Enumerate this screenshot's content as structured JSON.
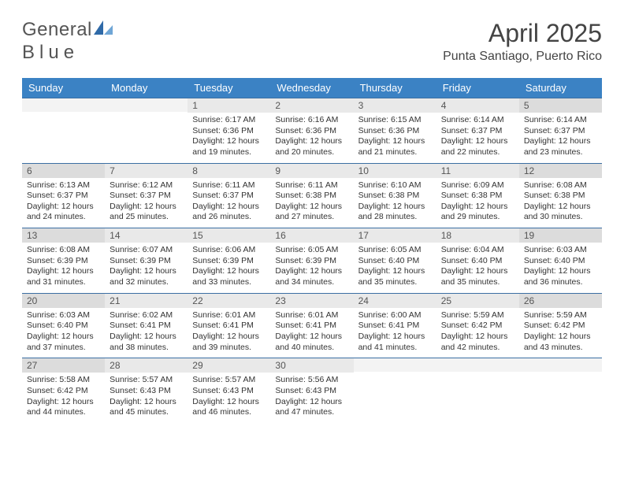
{
  "brand": {
    "name_a": "General",
    "name_b": "Blue"
  },
  "title": "April 2025",
  "location": "Punta Santiago, Puerto Rico",
  "header_row_bg": "#3b82c4",
  "header_row_fg": "#ffffff",
  "rule_color": "#3b6fa3",
  "daynum_bg": "#e9e9e9",
  "daynum_weekend_bg": "#dcdcdc",
  "logo_primary": "#2f6aa8",
  "logo_secondary": "#6fa6d6",
  "day_names": [
    "Sunday",
    "Monday",
    "Tuesday",
    "Wednesday",
    "Thursday",
    "Friday",
    "Saturday"
  ],
  "weeks": [
    [
      {
        "n": "",
        "sr": "",
        "ss": "",
        "dl": ""
      },
      {
        "n": "",
        "sr": "",
        "ss": "",
        "dl": ""
      },
      {
        "n": "1",
        "sr": "Sunrise: 6:17 AM",
        "ss": "Sunset: 6:36 PM",
        "dl": "Daylight: 12 hours and 19 minutes."
      },
      {
        "n": "2",
        "sr": "Sunrise: 6:16 AM",
        "ss": "Sunset: 6:36 PM",
        "dl": "Daylight: 12 hours and 20 minutes."
      },
      {
        "n": "3",
        "sr": "Sunrise: 6:15 AM",
        "ss": "Sunset: 6:36 PM",
        "dl": "Daylight: 12 hours and 21 minutes."
      },
      {
        "n": "4",
        "sr": "Sunrise: 6:14 AM",
        "ss": "Sunset: 6:37 PM",
        "dl": "Daylight: 12 hours and 22 minutes."
      },
      {
        "n": "5",
        "sr": "Sunrise: 6:14 AM",
        "ss": "Sunset: 6:37 PM",
        "dl": "Daylight: 12 hours and 23 minutes."
      }
    ],
    [
      {
        "n": "6",
        "sr": "Sunrise: 6:13 AM",
        "ss": "Sunset: 6:37 PM",
        "dl": "Daylight: 12 hours and 24 minutes."
      },
      {
        "n": "7",
        "sr": "Sunrise: 6:12 AM",
        "ss": "Sunset: 6:37 PM",
        "dl": "Daylight: 12 hours and 25 minutes."
      },
      {
        "n": "8",
        "sr": "Sunrise: 6:11 AM",
        "ss": "Sunset: 6:37 PM",
        "dl": "Daylight: 12 hours and 26 minutes."
      },
      {
        "n": "9",
        "sr": "Sunrise: 6:11 AM",
        "ss": "Sunset: 6:38 PM",
        "dl": "Daylight: 12 hours and 27 minutes."
      },
      {
        "n": "10",
        "sr": "Sunrise: 6:10 AM",
        "ss": "Sunset: 6:38 PM",
        "dl": "Daylight: 12 hours and 28 minutes."
      },
      {
        "n": "11",
        "sr": "Sunrise: 6:09 AM",
        "ss": "Sunset: 6:38 PM",
        "dl": "Daylight: 12 hours and 29 minutes."
      },
      {
        "n": "12",
        "sr": "Sunrise: 6:08 AM",
        "ss": "Sunset: 6:38 PM",
        "dl": "Daylight: 12 hours and 30 minutes."
      }
    ],
    [
      {
        "n": "13",
        "sr": "Sunrise: 6:08 AM",
        "ss": "Sunset: 6:39 PM",
        "dl": "Daylight: 12 hours and 31 minutes."
      },
      {
        "n": "14",
        "sr": "Sunrise: 6:07 AM",
        "ss": "Sunset: 6:39 PM",
        "dl": "Daylight: 12 hours and 32 minutes."
      },
      {
        "n": "15",
        "sr": "Sunrise: 6:06 AM",
        "ss": "Sunset: 6:39 PM",
        "dl": "Daylight: 12 hours and 33 minutes."
      },
      {
        "n": "16",
        "sr": "Sunrise: 6:05 AM",
        "ss": "Sunset: 6:39 PM",
        "dl": "Daylight: 12 hours and 34 minutes."
      },
      {
        "n": "17",
        "sr": "Sunrise: 6:05 AM",
        "ss": "Sunset: 6:40 PM",
        "dl": "Daylight: 12 hours and 35 minutes."
      },
      {
        "n": "18",
        "sr": "Sunrise: 6:04 AM",
        "ss": "Sunset: 6:40 PM",
        "dl": "Daylight: 12 hours and 35 minutes."
      },
      {
        "n": "19",
        "sr": "Sunrise: 6:03 AM",
        "ss": "Sunset: 6:40 PM",
        "dl": "Daylight: 12 hours and 36 minutes."
      }
    ],
    [
      {
        "n": "20",
        "sr": "Sunrise: 6:03 AM",
        "ss": "Sunset: 6:40 PM",
        "dl": "Daylight: 12 hours and 37 minutes."
      },
      {
        "n": "21",
        "sr": "Sunrise: 6:02 AM",
        "ss": "Sunset: 6:41 PM",
        "dl": "Daylight: 12 hours and 38 minutes."
      },
      {
        "n": "22",
        "sr": "Sunrise: 6:01 AM",
        "ss": "Sunset: 6:41 PM",
        "dl": "Daylight: 12 hours and 39 minutes."
      },
      {
        "n": "23",
        "sr": "Sunrise: 6:01 AM",
        "ss": "Sunset: 6:41 PM",
        "dl": "Daylight: 12 hours and 40 minutes."
      },
      {
        "n": "24",
        "sr": "Sunrise: 6:00 AM",
        "ss": "Sunset: 6:41 PM",
        "dl": "Daylight: 12 hours and 41 minutes."
      },
      {
        "n": "25",
        "sr": "Sunrise: 5:59 AM",
        "ss": "Sunset: 6:42 PM",
        "dl": "Daylight: 12 hours and 42 minutes."
      },
      {
        "n": "26",
        "sr": "Sunrise: 5:59 AM",
        "ss": "Sunset: 6:42 PM",
        "dl": "Daylight: 12 hours and 43 minutes."
      }
    ],
    [
      {
        "n": "27",
        "sr": "Sunrise: 5:58 AM",
        "ss": "Sunset: 6:42 PM",
        "dl": "Daylight: 12 hours and 44 minutes."
      },
      {
        "n": "28",
        "sr": "Sunrise: 5:57 AM",
        "ss": "Sunset: 6:43 PM",
        "dl": "Daylight: 12 hours and 45 minutes."
      },
      {
        "n": "29",
        "sr": "Sunrise: 5:57 AM",
        "ss": "Sunset: 6:43 PM",
        "dl": "Daylight: 12 hours and 46 minutes."
      },
      {
        "n": "30",
        "sr": "Sunrise: 5:56 AM",
        "ss": "Sunset: 6:43 PM",
        "dl": "Daylight: 12 hours and 47 minutes."
      },
      {
        "n": "",
        "sr": "",
        "ss": "",
        "dl": ""
      },
      {
        "n": "",
        "sr": "",
        "ss": "",
        "dl": ""
      },
      {
        "n": "",
        "sr": "",
        "ss": "",
        "dl": ""
      }
    ]
  ]
}
